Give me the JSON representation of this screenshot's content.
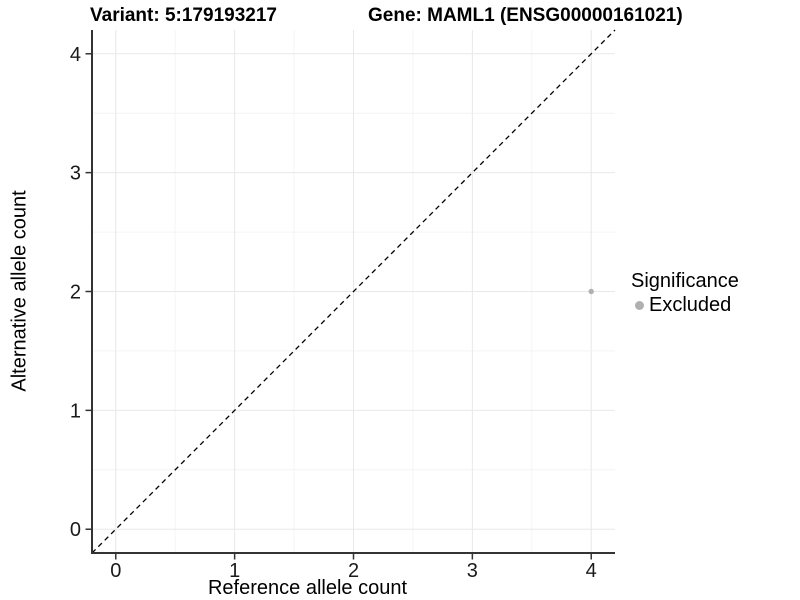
{
  "titles": {
    "variant": "Variant: 5:179193217",
    "gene": "Gene: MAML1 (ENSG00000161021)"
  },
  "legend": {
    "title": "Significance",
    "items": [
      {
        "label": "Excluded",
        "color": "#b0b0b0"
      }
    ]
  },
  "chart_data": {
    "type": "scatter",
    "title_left": "Variant: 5:179193217",
    "title_right": "Gene: MAML1 (ENSG00000161021)",
    "xlabel": "Reference allele count",
    "ylabel": "Alternative allele count",
    "xlim": [
      -0.2,
      4.2
    ],
    "ylim": [
      -0.2,
      4.2
    ],
    "xticks": [
      0,
      1,
      2,
      3,
      4
    ],
    "yticks": [
      0,
      1,
      2,
      3,
      4
    ],
    "xticks_minor": [
      0.5,
      1.5,
      2.5,
      3.5
    ],
    "yticks_minor": [
      0.5,
      1.5,
      2.5,
      3.5
    ],
    "grid": true,
    "identity_line": {
      "from": [
        -0.2,
        -0.2
      ],
      "to": [
        4.2,
        4.2
      ],
      "style": "dashed",
      "color": "#000000"
    },
    "series": [
      {
        "name": "Excluded",
        "color": "#b0b0b0",
        "points": [
          {
            "x": 4,
            "y": 2
          }
        ]
      }
    ],
    "legend_position": "right",
    "colors": {
      "grid_major": "#e8e8e8",
      "grid_minor": "#f4f4f4",
      "axis_line": "#333333",
      "tick_mark": "#333333",
      "tick_label": "#1a1a1a"
    }
  }
}
